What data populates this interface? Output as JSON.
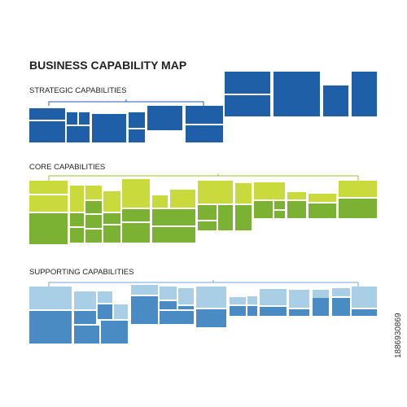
{
  "header": {
    "title": "BUSINESS CAPABILITY MAP"
  },
  "sections": [
    {
      "label": "STRATEGIC CAPABILITIES"
    },
    {
      "label": "CORE CAPABILITIES"
    },
    {
      "label": "SUPPORTING CAPABILITIES"
    }
  ],
  "watermark": "1886930869"
}
